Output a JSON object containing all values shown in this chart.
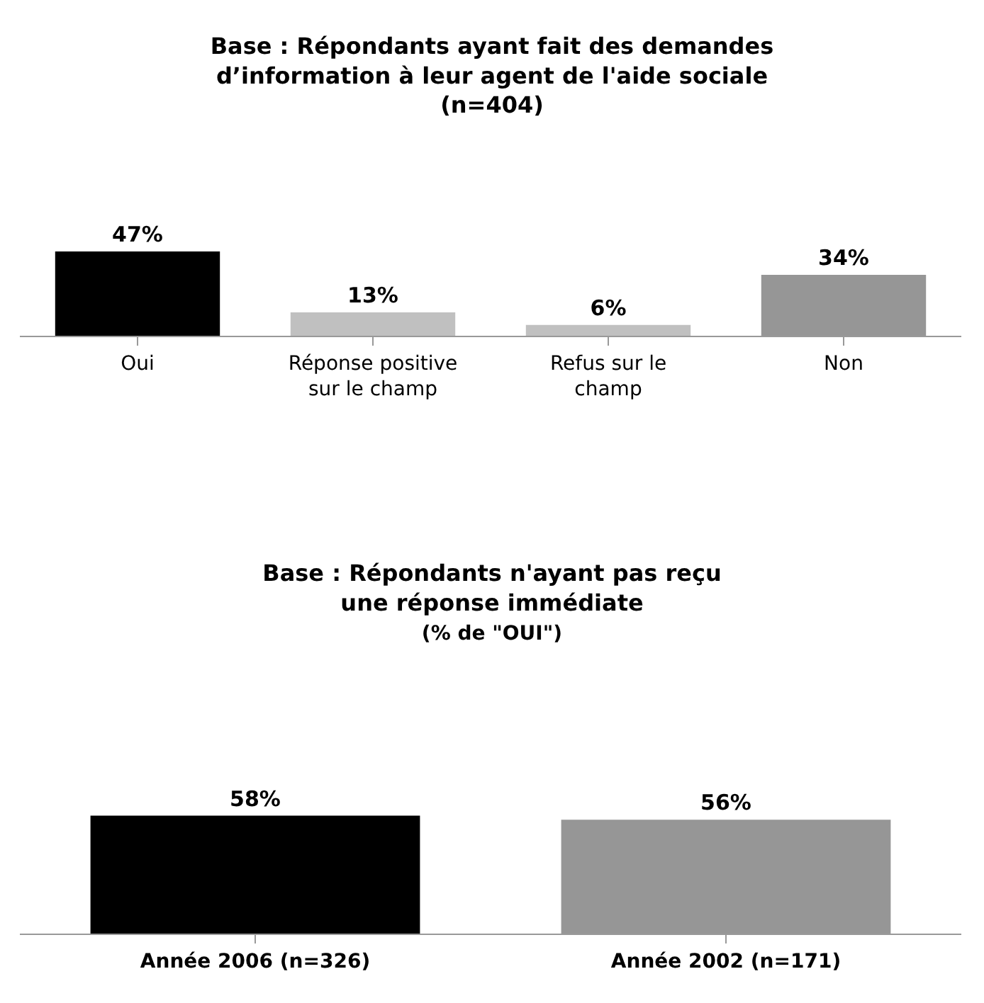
{
  "chart_data": [
    {
      "type": "bar",
      "title": "Base : Répondants ayant fait des demandes\nd’information à leur agent de l'aide sociale\n(n=404)",
      "categories": [
        "Oui",
        "Réponse positive\nsur le champ",
        "Refus sur le\nchamp",
        "Non"
      ],
      "values": [
        47,
        13,
        6,
        34
      ],
      "colors": [
        "#000000",
        "#c0c0c0",
        "#c0c0c0",
        "#969696"
      ],
      "value_labels": [
        "47%",
        "13%",
        "6%",
        "34%"
      ]
    },
    {
      "type": "bar",
      "title": "Base : Répondants n'ayant pas reçu\nune réponse immédiate",
      "subtitle": "(% de \"OUI\")",
      "categories": [
        "Année 2006 (n=326)",
        "Année 2002 (n=171)"
      ],
      "values": [
        58,
        56
      ],
      "colors": [
        "#000000",
        "#969696"
      ],
      "value_labels": [
        "58%",
        "56%"
      ]
    }
  ]
}
